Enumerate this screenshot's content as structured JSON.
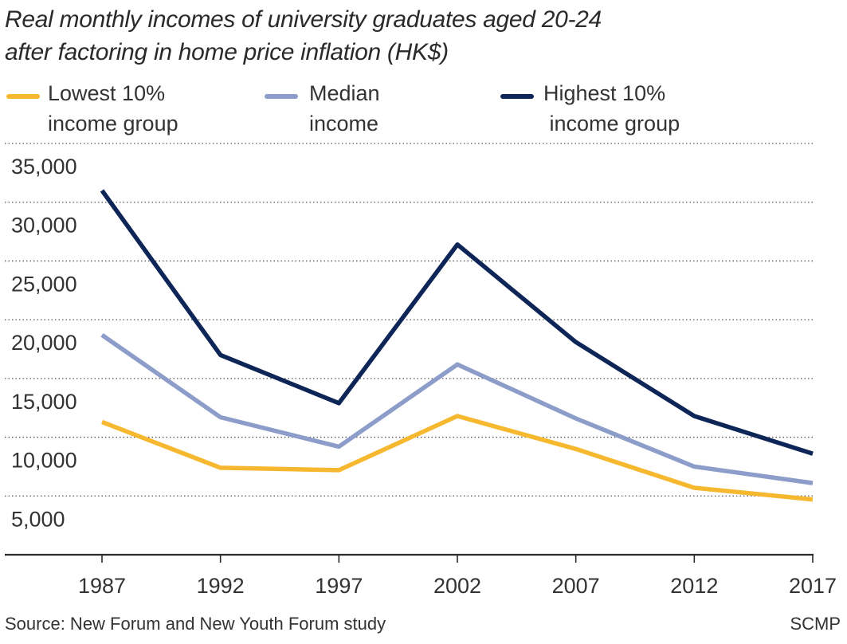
{
  "chart_data": {
    "type": "line",
    "title_lines": [
      "Real monthly incomes of university graduates aged 20-24",
      "after factoring in home price inflation (HK$)"
    ],
    "categories": [
      "1987",
      "1992",
      "1997",
      "2002",
      "2007",
      "2012",
      "2017"
    ],
    "series": [
      {
        "name": "Lowest 10% income group",
        "label_lines": [
          "Lowest 10%",
          "income group"
        ],
        "color": "#f5b82e",
        "values": [
          11300,
          7400,
          7200,
          11800,
          9000,
          5700,
          4700
        ]
      },
      {
        "name": "Median income",
        "label_lines": [
          "Median",
          "income"
        ],
        "color": "#8c9dc9",
        "values": [
          18700,
          11700,
          9200,
          16200,
          11600,
          7500,
          6100
        ]
      },
      {
        "name": "Highest 10% income group",
        "label_lines": [
          "Highest 10%",
          " income group"
        ],
        "color": "#0d2657",
        "values": [
          31000,
          17000,
          12900,
          26400,
          18100,
          11800,
          8600
        ]
      }
    ],
    "yticks": [
      5000,
      10000,
      15000,
      20000,
      25000,
      30000,
      35000
    ],
    "ytick_labels": [
      "5,000",
      "10,000",
      "15,000",
      "20,000",
      "25,000",
      "30,000",
      "35,000"
    ],
    "ylim": [
      0,
      35000
    ],
    "grid": "dotted horizontal",
    "legend_position": "top",
    "xlabel": "",
    "ylabel": ""
  },
  "source": "Source: New Forum and New Youth Forum study",
  "credit": "SCMP"
}
